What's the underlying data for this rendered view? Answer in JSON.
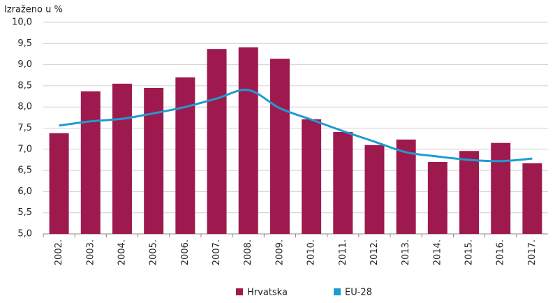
{
  "chart_data": {
    "type": "bar_line",
    "y_axis_label": "Izraženo u %",
    "categories": [
      "2002.",
      "2003.",
      "2004.",
      "2005.",
      "2006.",
      "2007.",
      "2008.",
      "2009.",
      "2010.",
      "2011.",
      "2012.",
      "2013.",
      "2014.",
      "2015.",
      "2016.",
      "2017."
    ],
    "series": [
      {
        "name": "Hrvatska",
        "type": "bar",
        "color": "#9e1a4e",
        "values": [
          7.38,
          8.37,
          8.55,
          8.45,
          8.7,
          9.37,
          9.41,
          9.14,
          7.71,
          7.41,
          7.1,
          7.23,
          6.7,
          6.96,
          7.15,
          6.67
        ]
      },
      {
        "name": "EU-28",
        "type": "line",
        "color": "#1f9bd1",
        "values": [
          7.56,
          7.66,
          7.72,
          7.85,
          8.0,
          8.2,
          8.4,
          7.97,
          7.7,
          7.43,
          7.18,
          6.93,
          6.83,
          6.75,
          6.72,
          6.78
        ]
      }
    ],
    "ylim": [
      5,
      10
    ],
    "yticks": [
      {
        "value": 5,
        "label": "5,0"
      },
      {
        "value": 5.5,
        "label": "5,5"
      },
      {
        "value": 6,
        "label": "6,0"
      },
      {
        "value": 6.5,
        "label": "6,5"
      },
      {
        "value": 7,
        "label": "7,0"
      },
      {
        "value": 7.5,
        "label": "7,5"
      },
      {
        "value": 8,
        "label": "8,0"
      },
      {
        "value": 8.5,
        "label": "8,5"
      },
      {
        "value": 9,
        "label": "9,0"
      },
      {
        "value": 9.5,
        "label": "9,5"
      },
      {
        "value": 10,
        "label": "10,0"
      }
    ],
    "grid": true,
    "legend_position": "bottom"
  }
}
